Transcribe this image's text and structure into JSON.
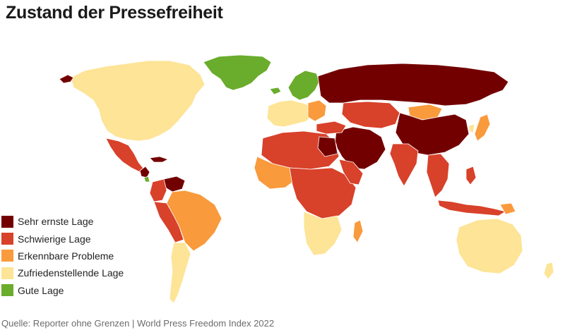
{
  "title": "Zustand der Pressefreiheit",
  "legend": {
    "items": [
      {
        "label": "Sehr ernste Lage",
        "color": "#730000"
      },
      {
        "label": "Schwierige Lage",
        "color": "#d8412a"
      },
      {
        "label": "Erkennbare Probleme",
        "color": "#f99a3c"
      },
      {
        "label": "Zufriedenstellende Lage",
        "color": "#fde496"
      },
      {
        "label": "Gute Lage",
        "color": "#6aac2c"
      }
    ]
  },
  "colors": {
    "ocean": "#ffffff",
    "border": "#ffffff"
  },
  "source": "Quelle: Reporter ohne Grenzen | World Press Freedom Index 2022"
}
